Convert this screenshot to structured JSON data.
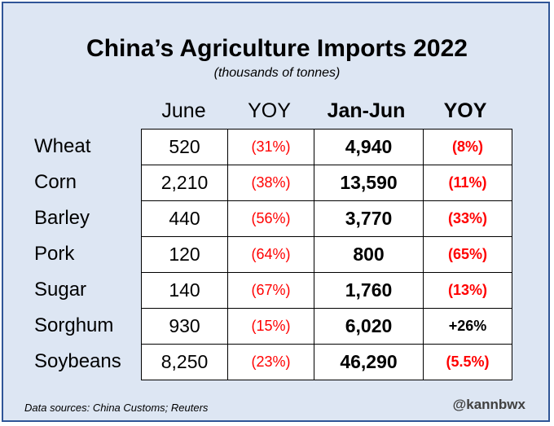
{
  "chart_data": {
    "type": "table",
    "title": "China’s Agriculture Imports 2022",
    "subtitle": "(thousands of tonnes)",
    "columns": [
      "June",
      "YOY",
      "Jan-Jun",
      "YOY"
    ],
    "rows": [
      {
        "label": "Wheat",
        "june": "520",
        "june_yoy": "(31%)",
        "jan_jun": "4,940",
        "jan_jun_yoy": "(8%)"
      },
      {
        "label": "Corn",
        "june": "2,210",
        "june_yoy": "(38%)",
        "jan_jun": "13,590",
        "jan_jun_yoy": "(11%)"
      },
      {
        "label": "Barley",
        "june": "440",
        "june_yoy": "(56%)",
        "jan_jun": "3,770",
        "jan_jun_yoy": "(33%)"
      },
      {
        "label": "Pork",
        "june": "120",
        "june_yoy": "(64%)",
        "jan_jun": "800",
        "jan_jun_yoy": "(65%)"
      },
      {
        "label": "Sugar",
        "june": "140",
        "june_yoy": "(67%)",
        "jan_jun": "1,760",
        "jan_jun_yoy": "(13%)"
      },
      {
        "label": "Sorghum",
        "june": "930",
        "june_yoy": "(15%)",
        "jan_jun": "6,020",
        "jan_jun_yoy": "+26%"
      },
      {
        "label": "Soybeans",
        "june": "8,250",
        "june_yoy": "(23%)",
        "jan_jun": "46,290",
        "jan_jun_yoy": "(5.5%)"
      }
    ],
    "source": "Data sources: China Customs; Reuters",
    "credit": "@kannbwx"
  },
  "colors": {
    "background": "#dde6f3",
    "border": "#2f5597",
    "negative": "#ff0000",
    "positive": "#000000"
  }
}
